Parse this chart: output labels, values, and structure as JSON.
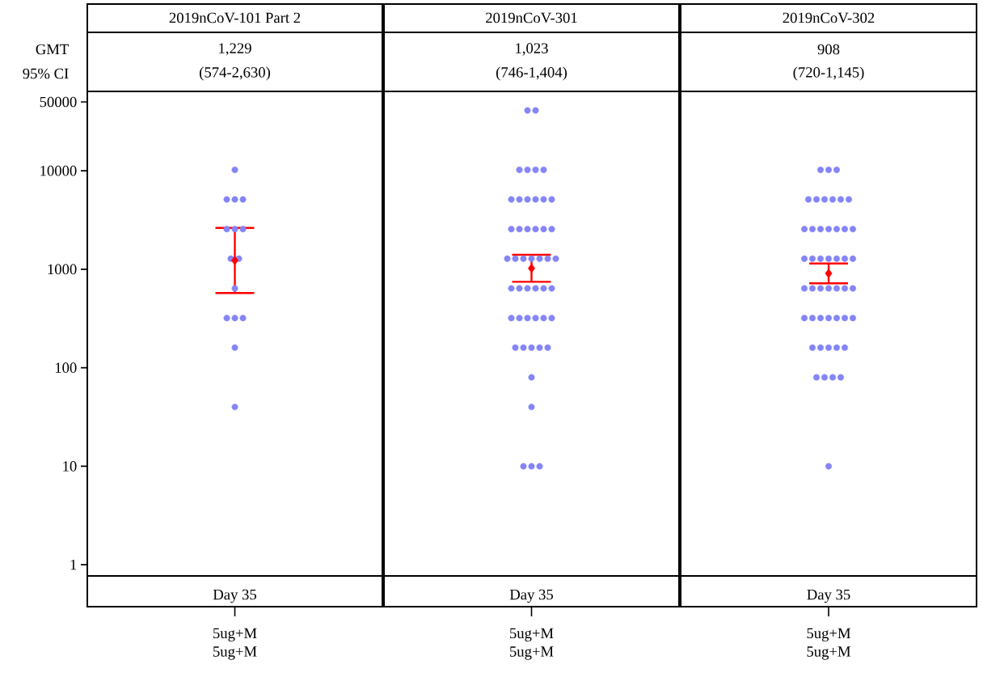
{
  "chart_data": [
    {
      "type": "scatter",
      "title": "2019nCoV-101 Part 2",
      "xlabel": "Day 35",
      "categories": [
        "5ug+M 5ug+M"
      ],
      "ylim": [
        0.77,
        64000
      ],
      "yticks": [
        1,
        10,
        100,
        1000,
        10000,
        50000
      ],
      "log": "y",
      "annotations": [
        "1,229",
        "(574-2,630)",
        "GMT",
        "95% CI"
      ],
      "series": [
        {
          "color": "#8585f7",
          "marker": "circle",
          "x": [
            "5ug+M 5ug+M",
            "5ug+M 5ug+M",
            "5ug+M 5ug+M",
            "5ug+M 5ug+M",
            "5ug+M 5ug+M",
            "5ug+M 5ug+M",
            "5ug+M 5ug+M",
            "5ug+M 5ug+M",
            "5ug+M 5ug+M",
            "5ug+M 5ug+M",
            "5ug+M 5ug+M",
            "5ug+M 5ug+M",
            "5ug+M 5ug+M",
            "5ug+M 5ug+M",
            "5ug+M 5ug+M"
          ],
          "values": [
            10240,
            5120,
            5120,
            5120,
            2560,
            2560,
            2560,
            1280,
            1280,
            640,
            320,
            320,
            320,
            160,
            40
          ]
        },
        {
          "color": "#ff0000",
          "marker": "diamond",
          "x": [
            "5ug+M 5ug+M"
          ],
          "values": [
            1229
          ],
          "errors": [
            [
              574,
              2630
            ]
          ]
        }
      ]
    },
    {
      "type": "scatter",
      "title": "2019nCoV-301",
      "xlabel": "Day 35",
      "categories": [
        "5ug+M 5ug+M"
      ],
      "ylim": [
        0.77,
        64000
      ],
      "yticks": [
        1,
        10,
        100,
        1000,
        10000,
        50000
      ],
      "log": "y",
      "tick_labels": "x",
      "annotations": [
        "1,023",
        "(746-1,404)"
      ],
      "series": [
        {
          "color": "#8585f7",
          "marker": "circle",
          "x": [
            "5ug+M 5ug+M",
            "5ug+M 5ug+M",
            "5ug+M 5ug+M",
            "5ug+M 5ug+M",
            "5ug+M 5ug+M",
            "5ug+M 5ug+M",
            "5ug+M 5ug+M",
            "5ug+M 5ug+M",
            "5ug+M 5ug+M",
            "5ug+M 5ug+M",
            "5ug+M 5ug+M",
            "5ug+M 5ug+M",
            "5ug+M 5ug+M",
            "5ug+M 5ug+M",
            "5ug+M 5ug+M",
            "5ug+M 5ug+M",
            "5ug+M 5ug+M",
            "5ug+M 5ug+M",
            "5ug+M 5ug+M",
            "5ug+M 5ug+M",
            "5ug+M 5ug+M",
            "5ug+M 5ug+M",
            "5ug+M 5ug+M",
            "5ug+M 5ug+M",
            "5ug+M 5ug+M",
            "5ug+M 5ug+M",
            "5ug+M 5ug+M",
            "5ug+M 5ug+M",
            "5ug+M 5ug+M",
            "5ug+M 5ug+M",
            "5ug+M 5ug+M",
            "5ug+M 5ug+M",
            "5ug+M 5ug+M",
            "5ug+M 5ug+M",
            "5ug+M 5ug+M",
            "5ug+M 5ug+M",
            "5ug+M 5ug+M",
            "5ug+M 5ug+M",
            "5ug+M 5ug+M",
            "5ug+M 5ug+M",
            "5ug+M 5ug+M",
            "5ug+M 5ug+M",
            "5ug+M 5ug+M",
            "5ug+M 5ug+M",
            "5ug+M 5ug+M",
            "5ug+M 5ug+M",
            "5ug+M 5ug+M"
          ],
          "values": [
            40960,
            40960,
            10240,
            10240,
            10240,
            10240,
            5120,
            5120,
            5120,
            5120,
            5120,
            5120,
            2560,
            2560,
            2560,
            2560,
            2560,
            2560,
            1280,
            1280,
            1280,
            1280,
            1280,
            1280,
            1280,
            640,
            640,
            640,
            640,
            640,
            640,
            320,
            320,
            320,
            320,
            320,
            320,
            160,
            160,
            160,
            160,
            160,
            80,
            40,
            10,
            10,
            10
          ]
        },
        {
          "color": "#ff0000",
          "marker": "diamond",
          "x": [
            "5ug+M 5ug+M"
          ],
          "values": [
            1023
          ],
          "errors": [
            [
              746,
              1404
            ]
          ]
        }
      ]
    },
    {
      "type": "scatter",
      "title": "2019nCoV-302",
      "xlabel": "Day 35",
      "categories": [
        "5ug+M 5ug+M"
      ],
      "ylim": [
        0.77,
        64000
      ],
      "yticks": [
        1,
        10,
        100,
        1000,
        10000,
        50000
      ],
      "log": "y",
      "tick_labels": "x",
      "annotations": [
        "908",
        "(720-1,145)"
      ],
      "series": [
        {
          "color": "#8585f7",
          "marker": "circle",
          "x": [
            "5ug+M 5ug+M",
            "5ug+M 5ug+M",
            "5ug+M 5ug+M",
            "5ug+M 5ug+M",
            "5ug+M 5ug+M",
            "5ug+M 5ug+M",
            "5ug+M 5ug+M",
            "5ug+M 5ug+M",
            "5ug+M 5ug+M",
            "5ug+M 5ug+M",
            "5ug+M 5ug+M",
            "5ug+M 5ug+M",
            "5ug+M 5ug+M",
            "5ug+M 5ug+M",
            "5ug+M 5ug+M",
            "5ug+M 5ug+M",
            "5ug+M 5ug+M",
            "5ug+M 5ug+M",
            "5ug+M 5ug+M",
            "5ug+M 5ug+M",
            "5ug+M 5ug+M",
            "5ug+M 5ug+M",
            "5ug+M 5ug+M",
            "5ug+M 5ug+M",
            "5ug+M 5ug+M",
            "5ug+M 5ug+M",
            "5ug+M 5ug+M",
            "5ug+M 5ug+M",
            "5ug+M 5ug+M",
            "5ug+M 5ug+M",
            "5ug+M 5ug+M",
            "5ug+M 5ug+M",
            "5ug+M 5ug+M",
            "5ug+M 5ug+M",
            "5ug+M 5ug+M",
            "5ug+M 5ug+M",
            "5ug+M 5ug+M",
            "5ug+M 5ug+M",
            "5ug+M 5ug+M",
            "5ug+M 5ug+M",
            "5ug+M 5ug+M",
            "5ug+M 5ug+M",
            "5ug+M 5ug+M",
            "5ug+M 5ug+M",
            "5ug+M 5ug+M",
            "5ug+M 5ug+M",
            "5ug+M 5ug+M"
          ],
          "values": [
            10240,
            10240,
            10240,
            5120,
            5120,
            5120,
            5120,
            5120,
            5120,
            2560,
            2560,
            2560,
            2560,
            2560,
            2560,
            2560,
            1280,
            1280,
            1280,
            1280,
            1280,
            1280,
            1280,
            640,
            640,
            640,
            640,
            640,
            640,
            640,
            320,
            320,
            320,
            320,
            320,
            320,
            320,
            160,
            160,
            160,
            160,
            160,
            80,
            80,
            80,
            80,
            10
          ]
        },
        {
          "color": "#ff0000",
          "marker": "diamond",
          "x": [
            "5ug+M 5ug+M"
          ],
          "values": [
            908
          ],
          "errors": [
            [
              720,
              1145
            ]
          ]
        }
      ]
    }
  ]
}
